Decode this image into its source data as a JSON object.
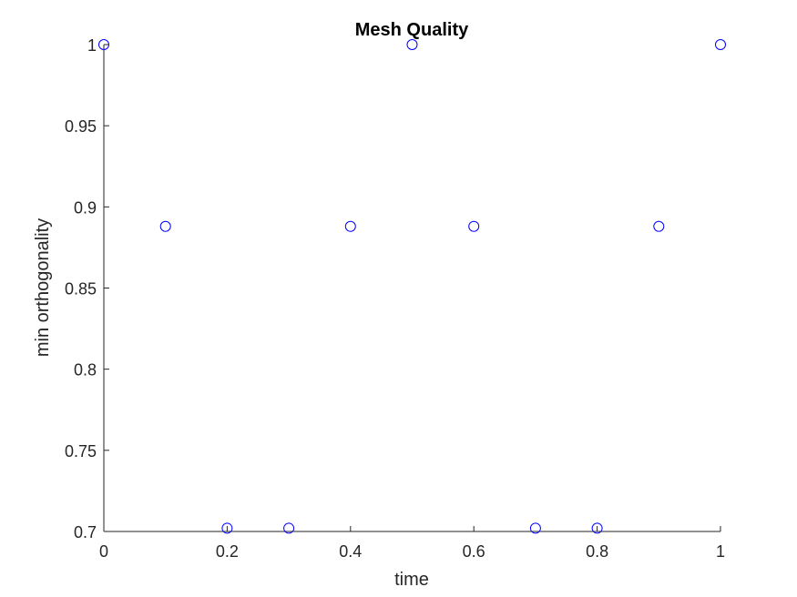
{
  "chart_data": {
    "type": "scatter",
    "title": "Mesh Quality",
    "xlabel": "time",
    "ylabel": "min orthogonality",
    "xlim": [
      0,
      1
    ],
    "ylim": [
      0.7,
      1
    ],
    "xticks": [
      0,
      0.2,
      0.4,
      0.6,
      0.8,
      1
    ],
    "xtick_labels": [
      "0",
      "0.2",
      "0.4",
      "0.6",
      "0.8",
      "1"
    ],
    "yticks": [
      0.7,
      0.75,
      0.8,
      0.85,
      0.9,
      0.95,
      1
    ],
    "ytick_labels": [
      "0.7",
      "0.75",
      "0.8",
      "0.85",
      "0.9",
      "0.95",
      "1"
    ],
    "grid": false,
    "marker": "open-circle",
    "marker_color": "#0000ff",
    "axis_color": "#262626",
    "series": [
      {
        "x": [
          0,
          0.1,
          0.2,
          0.3,
          0.4,
          0.5,
          0.6,
          0.7,
          0.8,
          0.9,
          1.0
        ],
        "y": [
          1.0,
          0.888,
          0.702,
          0.702,
          0.888,
          1.0,
          0.888,
          0.702,
          0.702,
          0.888,
          1.0
        ]
      }
    ]
  }
}
